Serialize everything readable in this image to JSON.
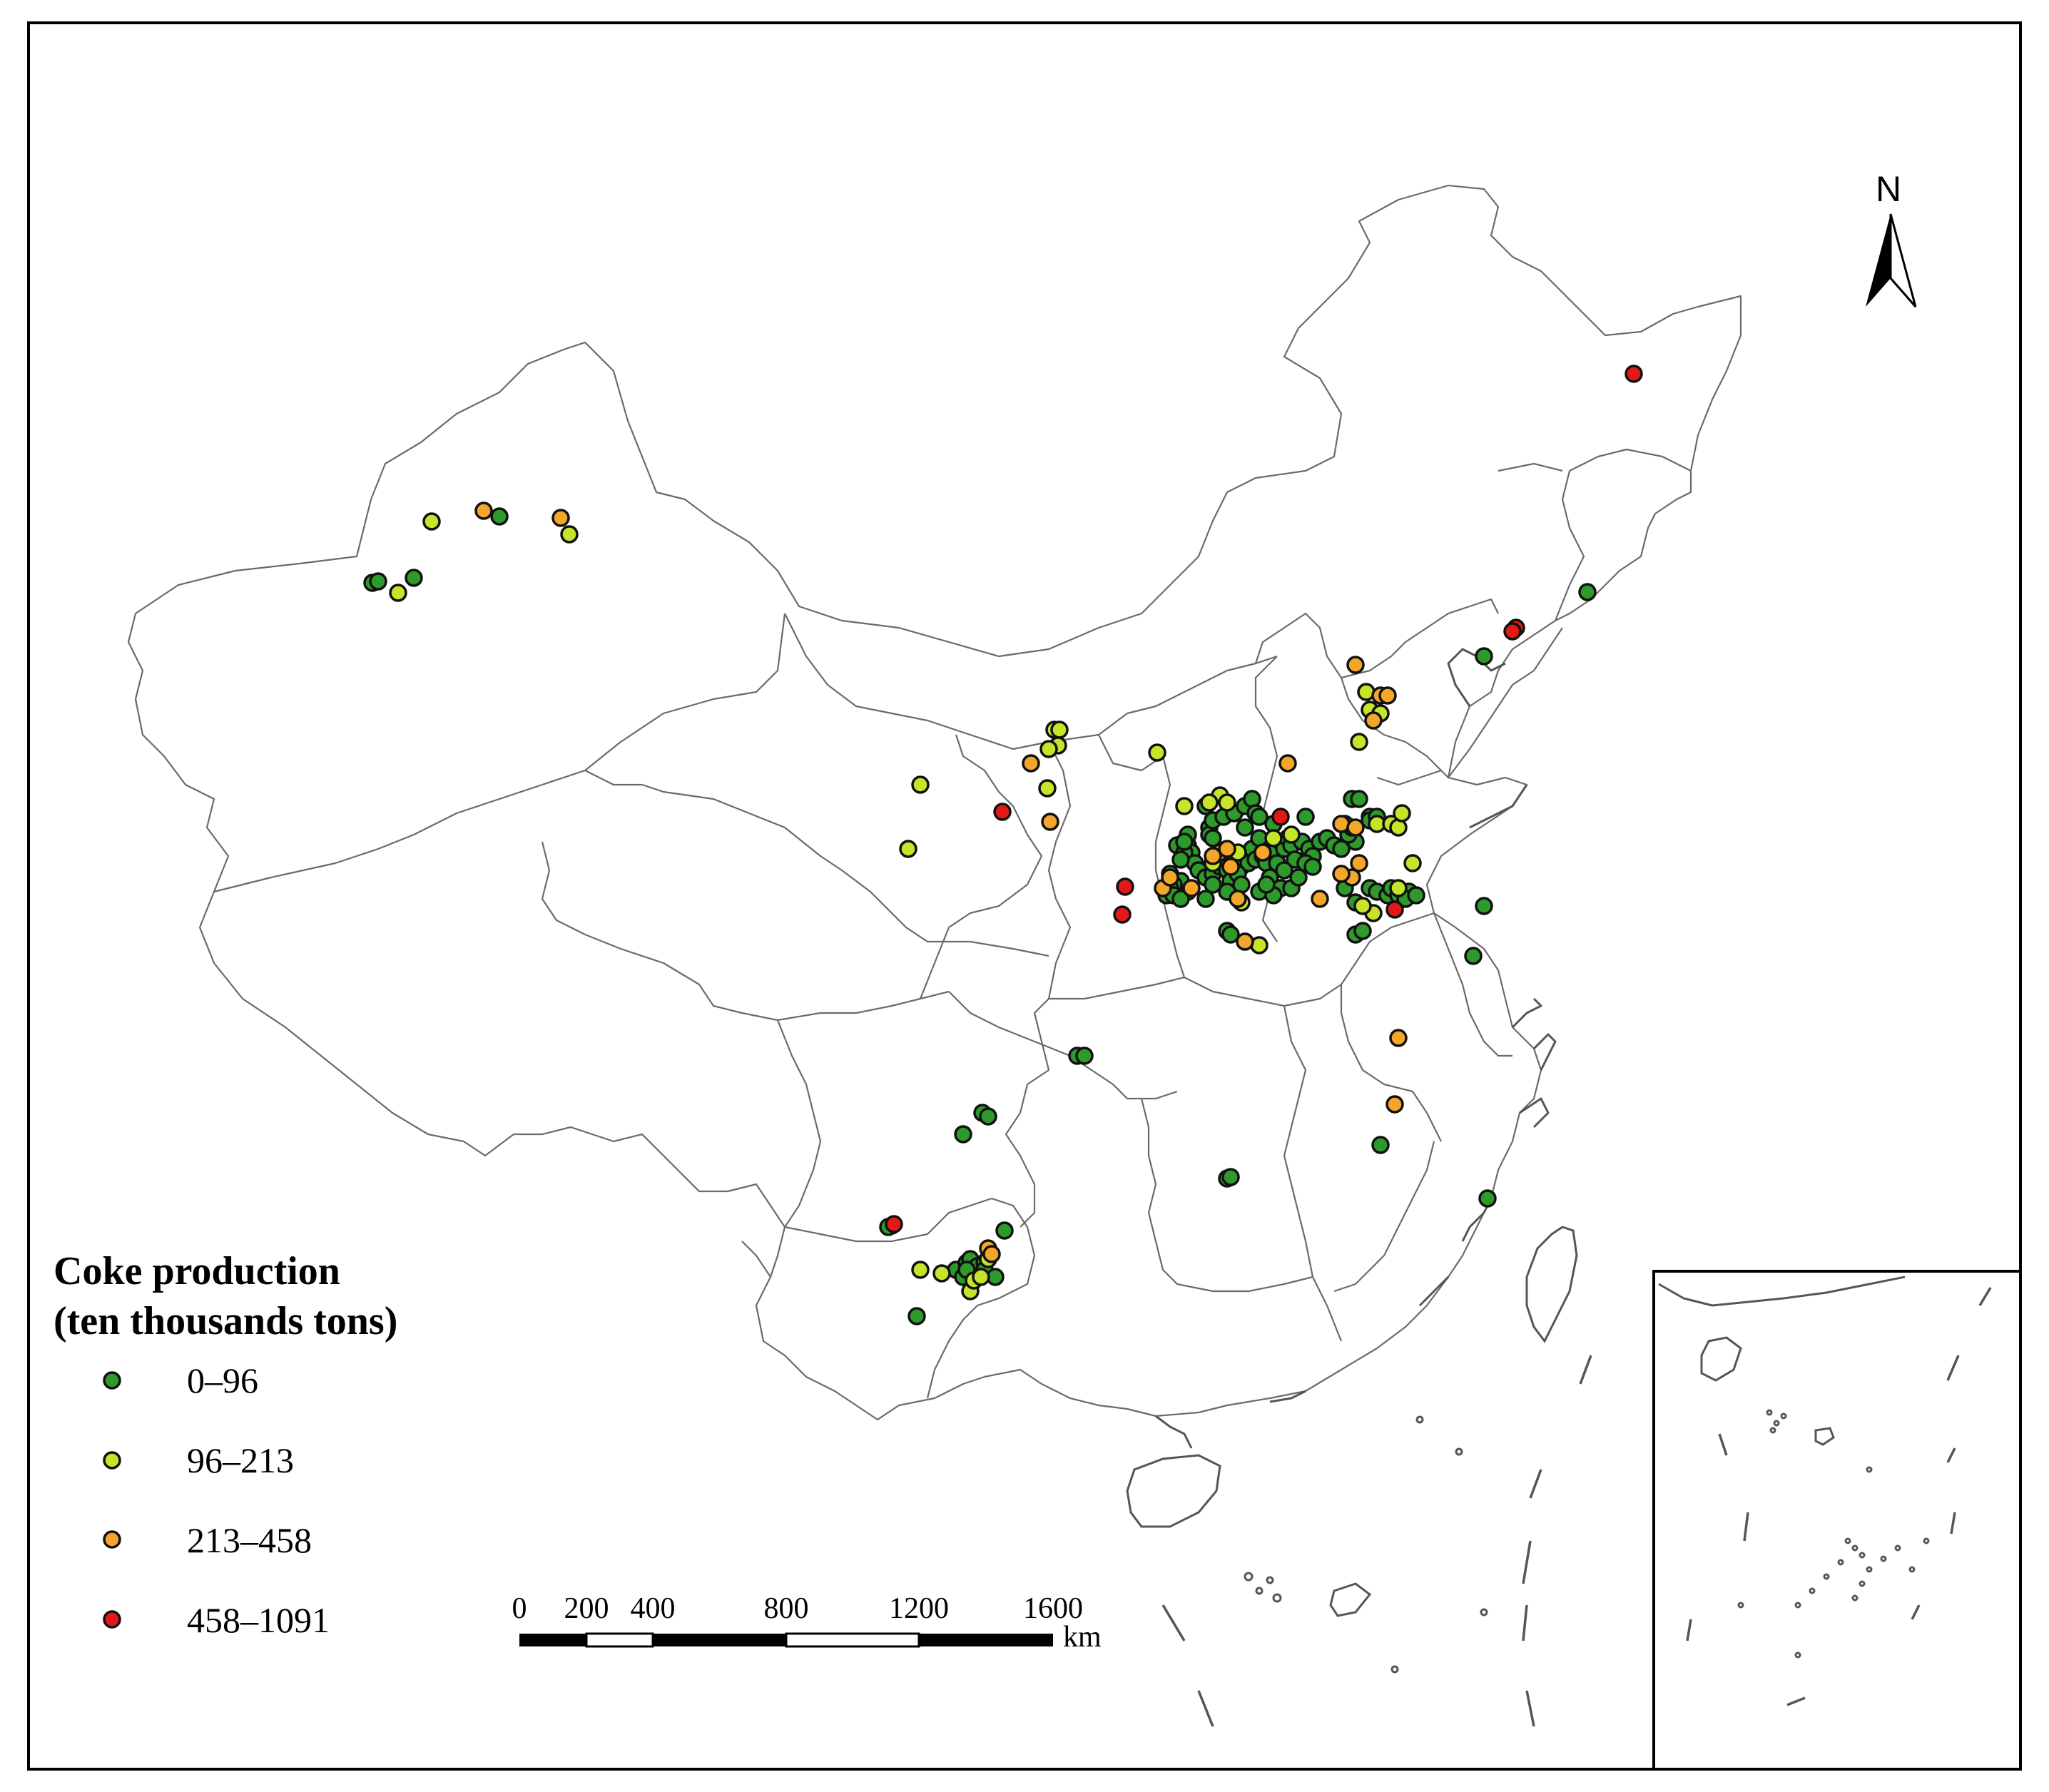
{
  "legend": {
    "title_line1": "Coke production",
    "title_line2": "(ten thousands tons)",
    "classes": [
      {
        "label": "0–96",
        "color": "#2e9a2b"
      },
      {
        "label": "96–213",
        "color": "#c6e52a"
      },
      {
        "label": "213–458",
        "color": "#f4a62a"
      },
      {
        "label": "458–1091",
        "color": "#e51818"
      }
    ]
  },
  "north_arrow": {
    "label": "N"
  },
  "scale_bar": {
    "ticks": [
      "0",
      "200",
      "400",
      "800",
      "1200",
      "1600"
    ],
    "unit": "km"
  },
  "plants": {
    "c0": [
      [
        522,
        817
      ],
      [
        530,
        815
      ],
      [
        580,
        810
      ],
      [
        700,
        724
      ],
      [
        1650,
        1185
      ],
      [
        1665,
        1185
      ],
      [
        1695,
        1160
      ],
      [
        1695,
        1170
      ],
      [
        1700,
        1175
      ],
      [
        1670,
        1195
      ],
      [
        1660,
        1195
      ],
      [
        1675,
        1210
      ],
      [
        1680,
        1220
      ],
      [
        1690,
        1230
      ],
      [
        1700,
        1225
      ],
      [
        1710,
        1215
      ],
      [
        1720,
        1220
      ],
      [
        1730,
        1200
      ],
      [
        1740,
        1215
      ],
      [
        1750,
        1210
      ],
      [
        1755,
        1190
      ],
      [
        1760,
        1205
      ],
      [
        1770,
        1200
      ],
      [
        1775,
        1180
      ],
      [
        1765,
        1175
      ],
      [
        1780,
        1190
      ],
      [
        1785,
        1195
      ],
      [
        1795,
        1180
      ],
      [
        1800,
        1190
      ],
      [
        1805,
        1175
      ],
      [
        1810,
        1185
      ],
      [
        1815,
        1205
      ],
      [
        1825,
        1180
      ],
      [
        1835,
        1190
      ],
      [
        1840,
        1200
      ],
      [
        1850,
        1180
      ],
      [
        1860,
        1175
      ],
      [
        1870,
        1185
      ],
      [
        1775,
        1210
      ],
      [
        1770,
        1195
      ],
      [
        1790,
        1210
      ],
      [
        1800,
        1220
      ],
      [
        1780,
        1230
      ],
      [
        1795,
        1245
      ],
      [
        1690,
        1130
      ],
      [
        1700,
        1150
      ],
      [
        1715,
        1145
      ],
      [
        1730,
        1140
      ],
      [
        1745,
        1130
      ],
      [
        1755,
        1120
      ],
      [
        1760,
        1140
      ],
      [
        1665,
        1250
      ],
      [
        1655,
        1235
      ],
      [
        1645,
        1240
      ],
      [
        1640,
        1245
      ],
      [
        1690,
        1260
      ],
      [
        1725,
        1235
      ],
      [
        1735,
        1225
      ],
      [
        1740,
        1240
      ],
      [
        1765,
        1250
      ],
      [
        1785,
        1255
      ],
      [
        1775,
        1240
      ],
      [
        1810,
        1245
      ],
      [
        1820,
        1230
      ],
      [
        1830,
        1210
      ],
      [
        1840,
        1215
      ],
      [
        1880,
        1190
      ],
      [
        1900,
        1180
      ],
      [
        1890,
        1170
      ],
      [
        1895,
        1160
      ],
      [
        1885,
        1155
      ],
      [
        1895,
        1120
      ],
      [
        1905,
        1120
      ],
      [
        1920,
        1145
      ],
      [
        1830,
        1145
      ],
      [
        1785,
        1155
      ],
      [
        1765,
        1145
      ],
      [
        1745,
        1160
      ],
      [
        1665,
        1170
      ],
      [
        1660,
        1180
      ],
      [
        1655,
        1205
      ],
      [
        1640,
        1225
      ],
      [
        1720,
        1250
      ],
      [
        1700,
        1240
      ],
      [
        1635,
        1255
      ],
      [
        1645,
        1255
      ],
      [
        1655,
        1260
      ],
      [
        1900,
        1265
      ],
      [
        1885,
        1245
      ],
      [
        1920,
        1245
      ],
      [
        1930,
        1250
      ],
      [
        1945,
        1255
      ],
      [
        1950,
        1245
      ],
      [
        1960,
        1255
      ],
      [
        1975,
        1250
      ],
      [
        1970,
        1260
      ],
      [
        1985,
        1255
      ],
      [
        1900,
        1310
      ],
      [
        1910,
        1305
      ],
      [
        1720,
        1305
      ],
      [
        1725,
        1310
      ],
      [
        1920,
        1150
      ],
      [
        1930,
        1145
      ],
      [
        2065,
        1340
      ],
      [
        2080,
        1270
      ],
      [
        2225,
        830
      ],
      [
        2080,
        920
      ],
      [
        1510,
        1480
      ],
      [
        1520,
        1480
      ],
      [
        1377,
        1560
      ],
      [
        1385,
        1565
      ],
      [
        1350,
        1590
      ],
      [
        1720,
        1652
      ],
      [
        1725,
        1650
      ],
      [
        1250,
        1718
      ],
      [
        1245,
        1720
      ],
      [
        1340,
        1780
      ],
      [
        1350,
        1790
      ],
      [
        1355,
        1770
      ],
      [
        1360,
        1765
      ],
      [
        1370,
        1775
      ],
      [
        1380,
        1770
      ],
      [
        1385,
        1765
      ],
      [
        1380,
        1780
      ],
      [
        1365,
        1790
      ],
      [
        1395,
        1790
      ],
      [
        1355,
        1780
      ],
      [
        1408,
        1725
      ],
      [
        1285,
        1845
      ],
      [
        1935,
        1605
      ],
      [
        2085,
        1680
      ]
    ],
    "c1": [
      [
        605,
        731
      ],
      [
        558,
        831
      ],
      [
        798,
        749
      ],
      [
        1478,
        1023
      ],
      [
        1485,
        1023
      ],
      [
        1483,
        1045
      ],
      [
        1470,
        1050
      ],
      [
        1468,
        1105
      ],
      [
        1622,
        1055
      ],
      [
        1290,
        1100
      ],
      [
        1273,
        1190
      ],
      [
        1660,
        1130
      ],
      [
        1710,
        1115
      ],
      [
        1720,
        1125
      ],
      [
        1695,
        1125
      ],
      [
        1700,
        1210
      ],
      [
        1725,
        1200
      ],
      [
        1712,
        1195
      ],
      [
        1735,
        1195
      ],
      [
        1785,
        1175
      ],
      [
        1740,
        1265
      ],
      [
        1765,
        1325
      ],
      [
        1745,
        1320
      ],
      [
        1810,
        1170
      ],
      [
        1930,
        1155
      ],
      [
        1950,
        1155
      ],
      [
        1960,
        1160
      ],
      [
        1980,
        1210
      ],
      [
        1960,
        1245
      ],
      [
        1905,
        1040
      ],
      [
        1915,
        970
      ],
      [
        1920,
        995
      ],
      [
        1935,
        1000
      ],
      [
        1965,
        1140
      ],
      [
        1290,
        1780
      ],
      [
        1320,
        1785
      ],
      [
        1360,
        1810
      ],
      [
        1385,
        1765
      ],
      [
        1925,
        1280
      ],
      [
        1910,
        1270
      ],
      [
        1365,
        1795
      ],
      [
        1375,
        1790
      ]
    ],
    "c2": [
      [
        678,
        716
      ],
      [
        786,
        726
      ],
      [
        1445,
        1070
      ],
      [
        1472,
        1152
      ],
      [
        1880,
        1155
      ],
      [
        1900,
        1160
      ],
      [
        1805,
        1070
      ],
      [
        1900,
        932
      ],
      [
        1935,
        975
      ],
      [
        1945,
        975
      ],
      [
        1925,
        1010
      ],
      [
        1905,
        1210
      ],
      [
        1895,
        1230
      ],
      [
        1850,
        1260
      ],
      [
        1670,
        1245
      ],
      [
        1630,
        1245
      ],
      [
        1640,
        1230
      ],
      [
        1710,
        1195
      ],
      [
        1700,
        1200
      ],
      [
        1720,
        1190
      ],
      [
        1770,
        1195
      ],
      [
        1725,
        1215
      ],
      [
        1880,
        1225
      ],
      [
        1735,
        1260
      ],
      [
        1960,
        1455
      ],
      [
        1955,
        1548
      ],
      [
        1745,
        1320
      ],
      [
        1385,
        1750
      ],
      [
        1390,
        1758
      ]
    ],
    "c3": [
      [
        2290,
        524
      ],
      [
        2125,
        880
      ],
      [
        2120,
        885
      ],
      [
        1405,
        1138
      ],
      [
        1577,
        1243
      ],
      [
        1573,
        1282
      ],
      [
        1795,
        1145
      ],
      [
        1955,
        1275
      ],
      [
        1253,
        1716
      ]
    ]
  }
}
